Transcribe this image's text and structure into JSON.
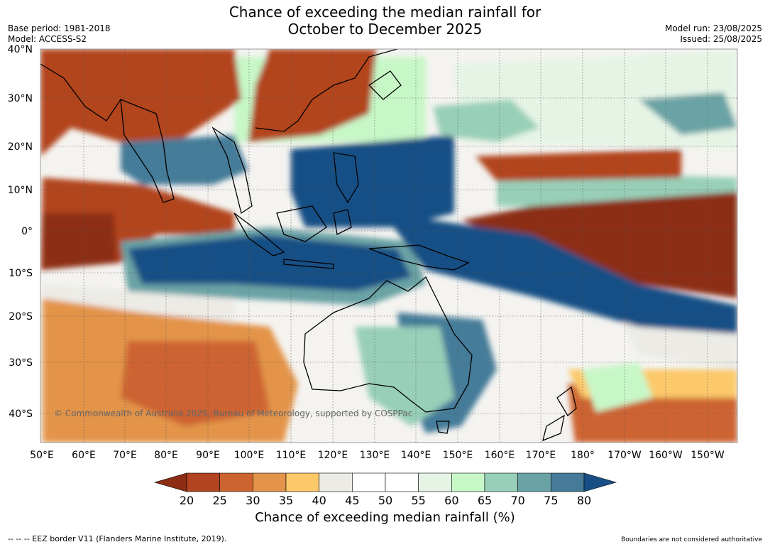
{
  "header": {
    "title_line1": "Chance of exceeding the median rainfall for",
    "title_line2": "October to December 2025",
    "base_period": "Base period: 1981-2018",
    "model": "Model: ACCESS-S2",
    "model_run": "Model run: 23/08/2025",
    "issued": "Issued: 25/08/2025"
  },
  "map": {
    "lat_labels": [
      "40°N",
      "30°N",
      "20°N",
      "10°N",
      "0°",
      "10°S",
      "20°S",
      "30°S",
      "40°S"
    ],
    "lon_labels": [
      "50°E",
      "60°E",
      "70°E",
      "80°E",
      "90°E",
      "100°E",
      "110°E",
      "120°E",
      "130°E",
      "140°E",
      "150°E",
      "160°E",
      "170°E",
      "180°",
      "170°W",
      "160°W",
      "150°W"
    ],
    "copyright": "© Commonwealth of Australia 2025, Bureau of Meteorology, supported by COSPPac"
  },
  "colorbar": {
    "ticks": [
      "20",
      "25",
      "30",
      "35",
      "40",
      "45",
      "50",
      "55",
      "60",
      "65",
      "70",
      "75",
      "80"
    ],
    "colors": [
      "#8c2d14",
      "#b2441f",
      "#cd6430",
      "#e3944a",
      "#fbc96a",
      "#ecebe6",
      "#ffffff",
      "#ffffff",
      "#e6f4e6",
      "#c7f7c7",
      "#98cfb8",
      "#6aa3a5",
      "#457b99",
      "#174f85"
    ],
    "label": "Chance of exceeding median rainfall (%)"
  },
  "footer": {
    "eez": "--  --  -- EEZ border V11 (Flanders Marine Institute, 2019).",
    "boundaries": "Boundaries are not considered authoritative"
  }
}
